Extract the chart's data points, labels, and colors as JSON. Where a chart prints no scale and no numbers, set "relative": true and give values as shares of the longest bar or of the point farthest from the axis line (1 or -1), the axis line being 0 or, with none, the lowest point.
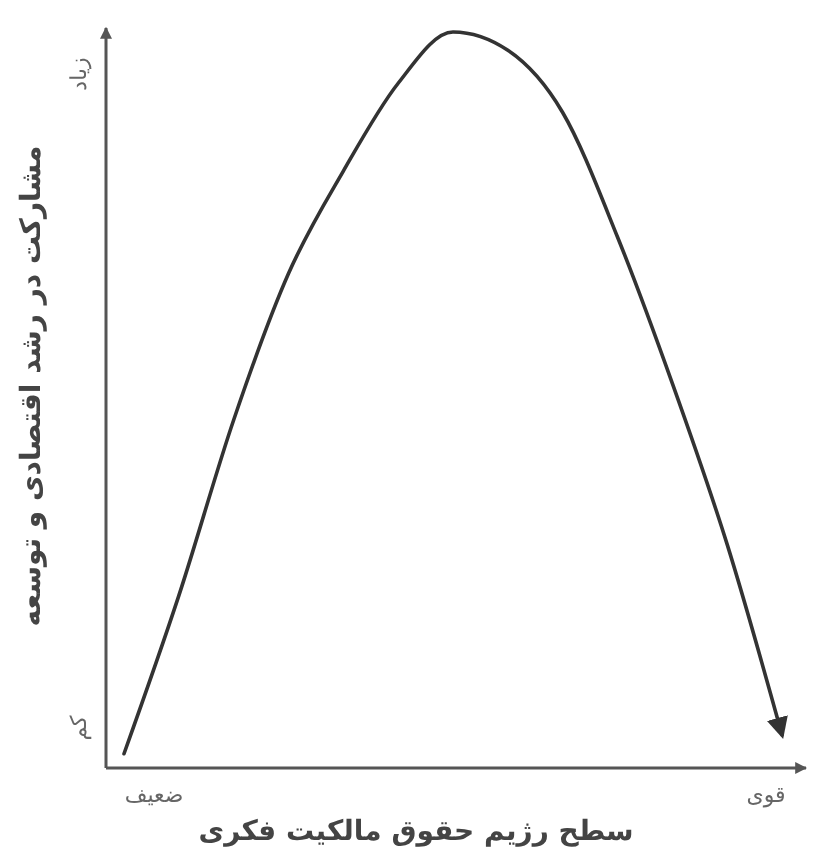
{
  "chart_data": {
    "type": "line",
    "xlabel": "سطح رژیم حقوق مالکیت فکری",
    "ylabel": "مشارکت در رشد اقتصادی و توسعه",
    "categories": [
      null,
      null,
      null,
      null,
      null,
      null,
      null,
      null,
      null,
      null,
      null,
      null,
      null
    ],
    "series": [
      {
        "color": "#333333",
        "values": [
          0.014,
          0.23,
          0.47,
          0.67,
          0.81,
          0.93,
          1,
          0.975,
          0.89,
          0.72,
          0.52,
          0.3,
          0.04
        ]
      }
    ],
    "relative": true,
    "annotations": [
      "ضعیف",
      "قوی",
      "کم",
      "زیاد"
    ],
    "grid": false,
    "marker": "none",
    "line_style": "solid"
  }
}
